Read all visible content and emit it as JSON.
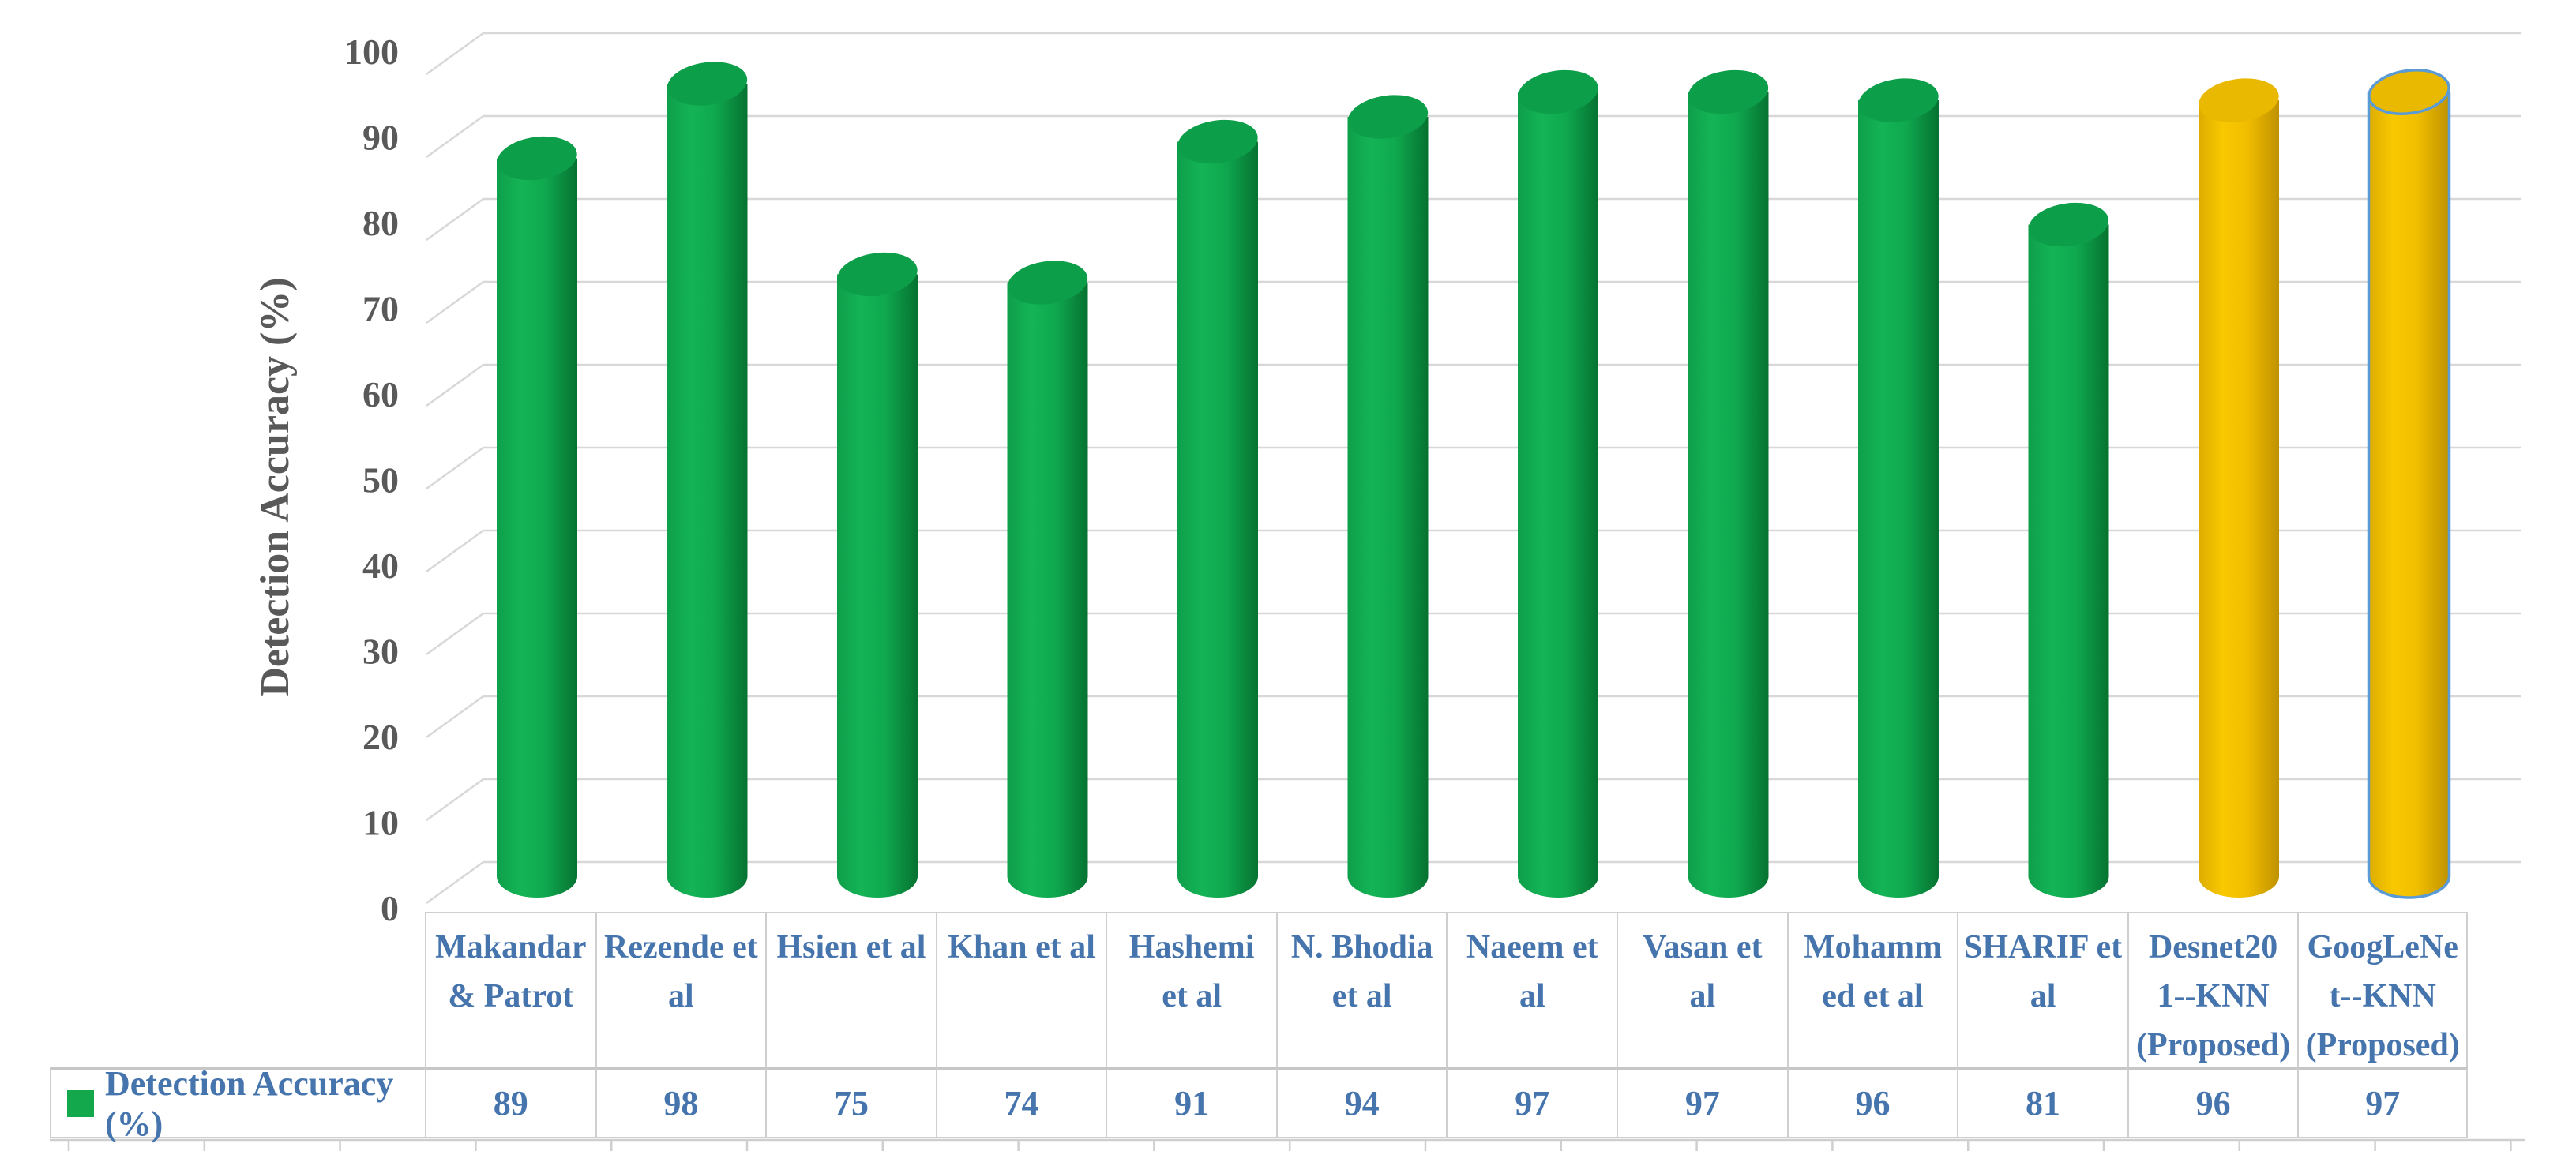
{
  "chart_data": {
    "type": "bar",
    "style": "3d-cylinder",
    "title": "",
    "xlabel": "",
    "ylabel": "Detection Accuracy (%)",
    "ylim": [
      0,
      100
    ],
    "ytick_step": 10,
    "yticks": [
      0,
      10,
      20,
      30,
      40,
      50,
      60,
      70,
      80,
      90,
      100
    ],
    "grid": true,
    "legend_position": "bottom-left-table",
    "categories": [
      "Makandar & Patrot",
      "Rezende et al",
      "Hsien et al",
      "Khan et al",
      "Hashemi et al",
      "N. Bhodia et al",
      "Naeem et al",
      "Vasan et al",
      "Mohammed et al",
      "SHARIF et al",
      "Desnet201--KNN (Proposed)",
      "GoogLeNet--KNN (Proposed)"
    ],
    "category_display_lines": [
      [
        "Makandar",
        "& Patrot"
      ],
      [
        "Rezende et",
        "al"
      ],
      [
        "Hsien et al"
      ],
      [
        "Khan et al"
      ],
      [
        "Hashemi",
        "et al"
      ],
      [
        "N. Bhodia",
        "et al"
      ],
      [
        "Naeem et",
        "al"
      ],
      [
        "Vasan et",
        "al"
      ],
      [
        "Mohamm",
        "ed et al"
      ],
      [
        "SHARIF et",
        "al"
      ],
      [
        "Desnet20",
        "1--KNN",
        "(Proposed)"
      ],
      [
        "GoogLeNe",
        "t--KNN",
        "(Proposed)"
      ]
    ],
    "series": [
      {
        "name": "Detection Accuracy (%)",
        "values": [
          89,
          98,
          75,
          74,
          91,
          94,
          97,
          97,
          96,
          81,
          96,
          97
        ],
        "bar_styles": [
          "green",
          "green",
          "green",
          "green",
          "green",
          "green",
          "green",
          "green",
          "green",
          "green",
          "gold",
          "gold"
        ],
        "outlined_bar_index": 11
      }
    ]
  },
  "colors": {
    "green": {
      "light": "#14B456",
      "mid": "#0FA84E",
      "dark": "#067231",
      "edge": "#0E9F4A",
      "top": "#0C9E48"
    },
    "gold": {
      "light": "#F9C800",
      "mid": "#F2BE00",
      "dark": "#BE9200",
      "edge": "#DCAC00",
      "top": "#E9B800"
    },
    "selection_outline_blue": "#5B9BD5",
    "table_text_blue": "#4674AD",
    "axis_text_gray": "#595959",
    "gridline_gray": "#D8D8D8",
    "table_border_gray": "#CFCFCF",
    "legend_swatch_green": "#12A84B"
  }
}
